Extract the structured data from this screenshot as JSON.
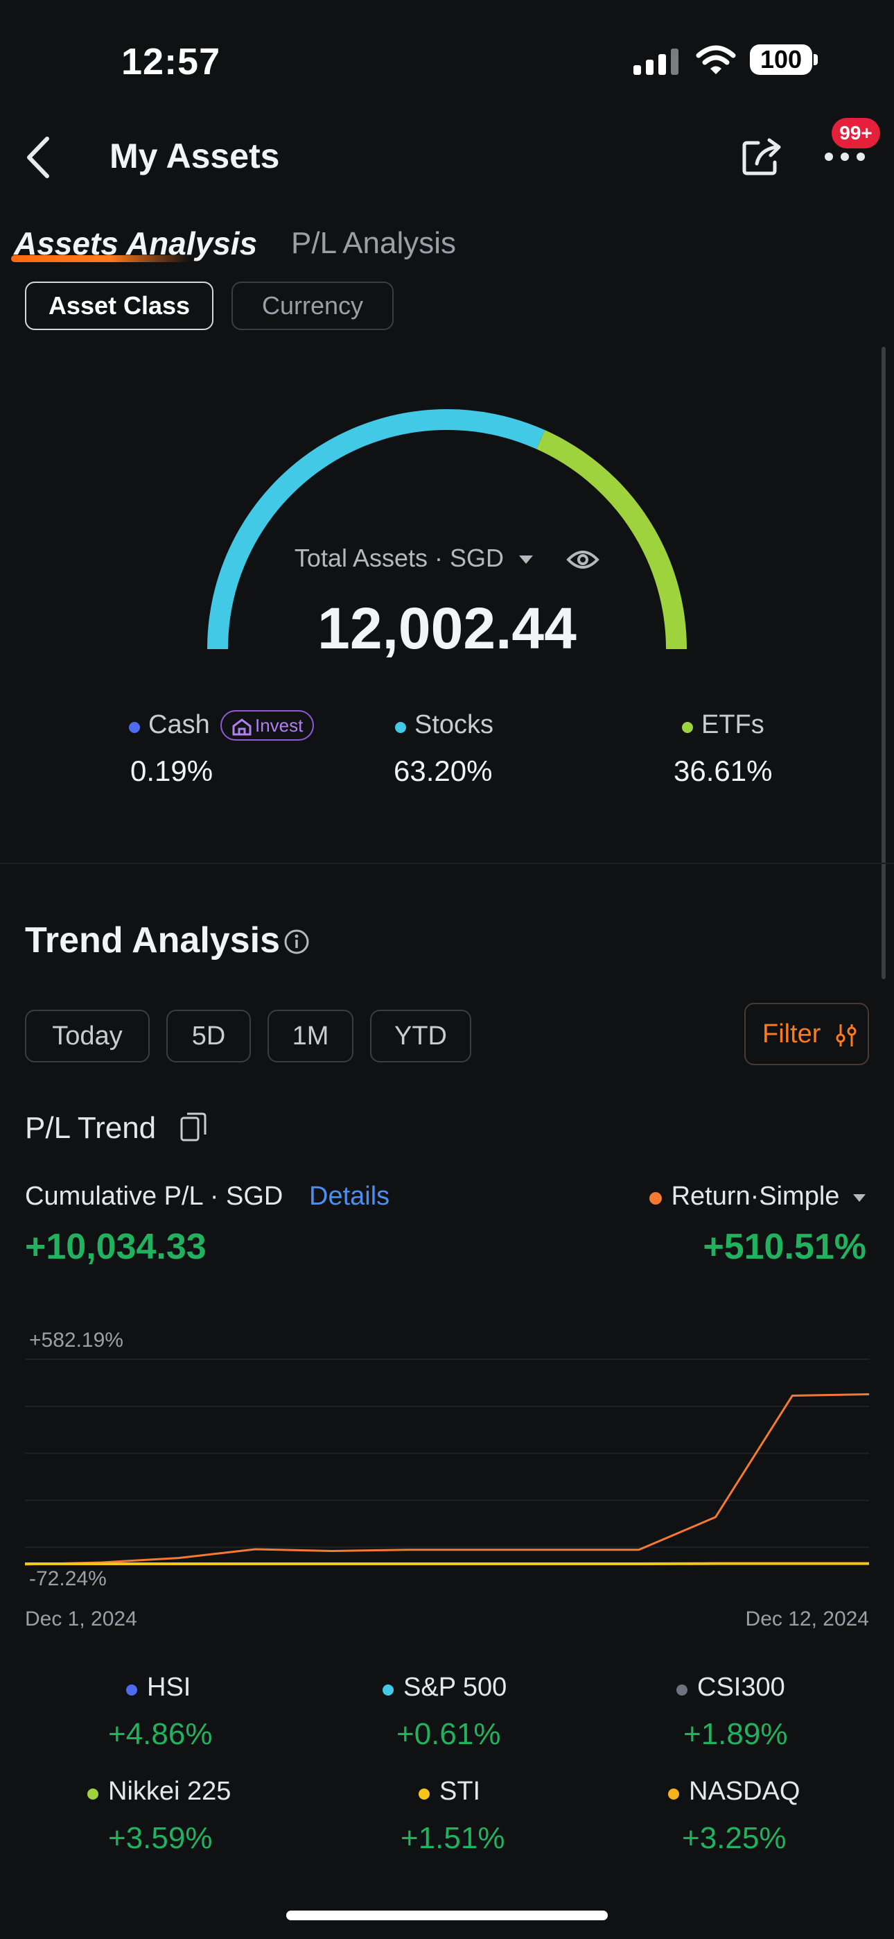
{
  "status_bar": {
    "time": "12:57",
    "battery": "100"
  },
  "header": {
    "title": "My Assets",
    "notification_badge": "99+"
  },
  "tabs": [
    {
      "label": "Assets Analysis",
      "active": true
    },
    {
      "label": "P/L Analysis",
      "active": false
    }
  ],
  "segments": [
    {
      "label": "Asset Class",
      "active": true
    },
    {
      "label": "Currency",
      "active": false
    }
  ],
  "summary": {
    "label": "Total Assets · SGD",
    "value": "12,002.44",
    "allocations": [
      {
        "name": "Cash",
        "percent": "0.19%",
        "fraction": 0.0019,
        "color": "#4f6cf0",
        "chip": "Invest"
      },
      {
        "name": "Stocks",
        "percent": "63.20%",
        "fraction": 0.632,
        "color": "#41c9e6"
      },
      {
        "name": "ETFs",
        "percent": "36.61%",
        "fraction": 0.3661,
        "color": "#9ed33e"
      }
    ]
  },
  "trend": {
    "title": "Trend Analysis",
    "periods": [
      "Today",
      "5D",
      "1M",
      "YTD"
    ],
    "filter_label": "Filter",
    "pl_trend_label": "P/L Trend",
    "cumulative_label": "Cumulative P/L · SGD",
    "details_label": "Details",
    "cumulative_value": "+10,034.33",
    "return_label": "Return·Simple",
    "return_value": "+510.51%"
  },
  "chart_data": {
    "type": "line",
    "x": [
      "Dec 1, 2024",
      "Dec 2, 2024",
      "Dec 3, 2024",
      "Dec 4, 2024",
      "Dec 5, 2024",
      "Dec 6, 2024",
      "Dec 7, 2024",
      "Dec 8, 2024",
      "Dec 9, 2024",
      "Dec 10, 2024",
      "Dec 11, 2024",
      "Dec 12, 2024"
    ],
    "x_tick_labels": [
      "Dec 1, 2024",
      "Dec 12, 2024"
    ],
    "y_tick_labels": [
      "+582.19%",
      "-72.24%"
    ],
    "ylim": [
      -72.24,
      582.19
    ],
    "grid": true,
    "series": [
      {
        "name": "Return·Simple",
        "color": "#f47a32",
        "values": [
          -72,
          -65,
          -50,
          -20,
          -26,
          -22,
          -22,
          -22,
          -22,
          90,
          505,
          510
        ]
      },
      {
        "color": "#f5c518",
        "values": [
          -70,
          -70,
          -70,
          -70,
          -70,
          -70,
          -70,
          -70,
          -70,
          -69,
          -69,
          -69
        ]
      }
    ]
  },
  "benchmarks": [
    {
      "name": "HSI",
      "value": "+4.86%",
      "color": "#4f6cf0"
    },
    {
      "name": "S&P 500",
      "value": "+0.61%",
      "color": "#41c9e6"
    },
    {
      "name": "CSI300",
      "value": "+1.89%",
      "color": "#6d7480"
    },
    {
      "name": "Nikkei 225",
      "value": "+3.59%",
      "color": "#9ed33e"
    },
    {
      "name": "STI",
      "value": "+1.51%",
      "color": "#f5c518"
    },
    {
      "name": "NASDAQ",
      "value": "+3.25%",
      "color": "#f5b21a"
    }
  ]
}
